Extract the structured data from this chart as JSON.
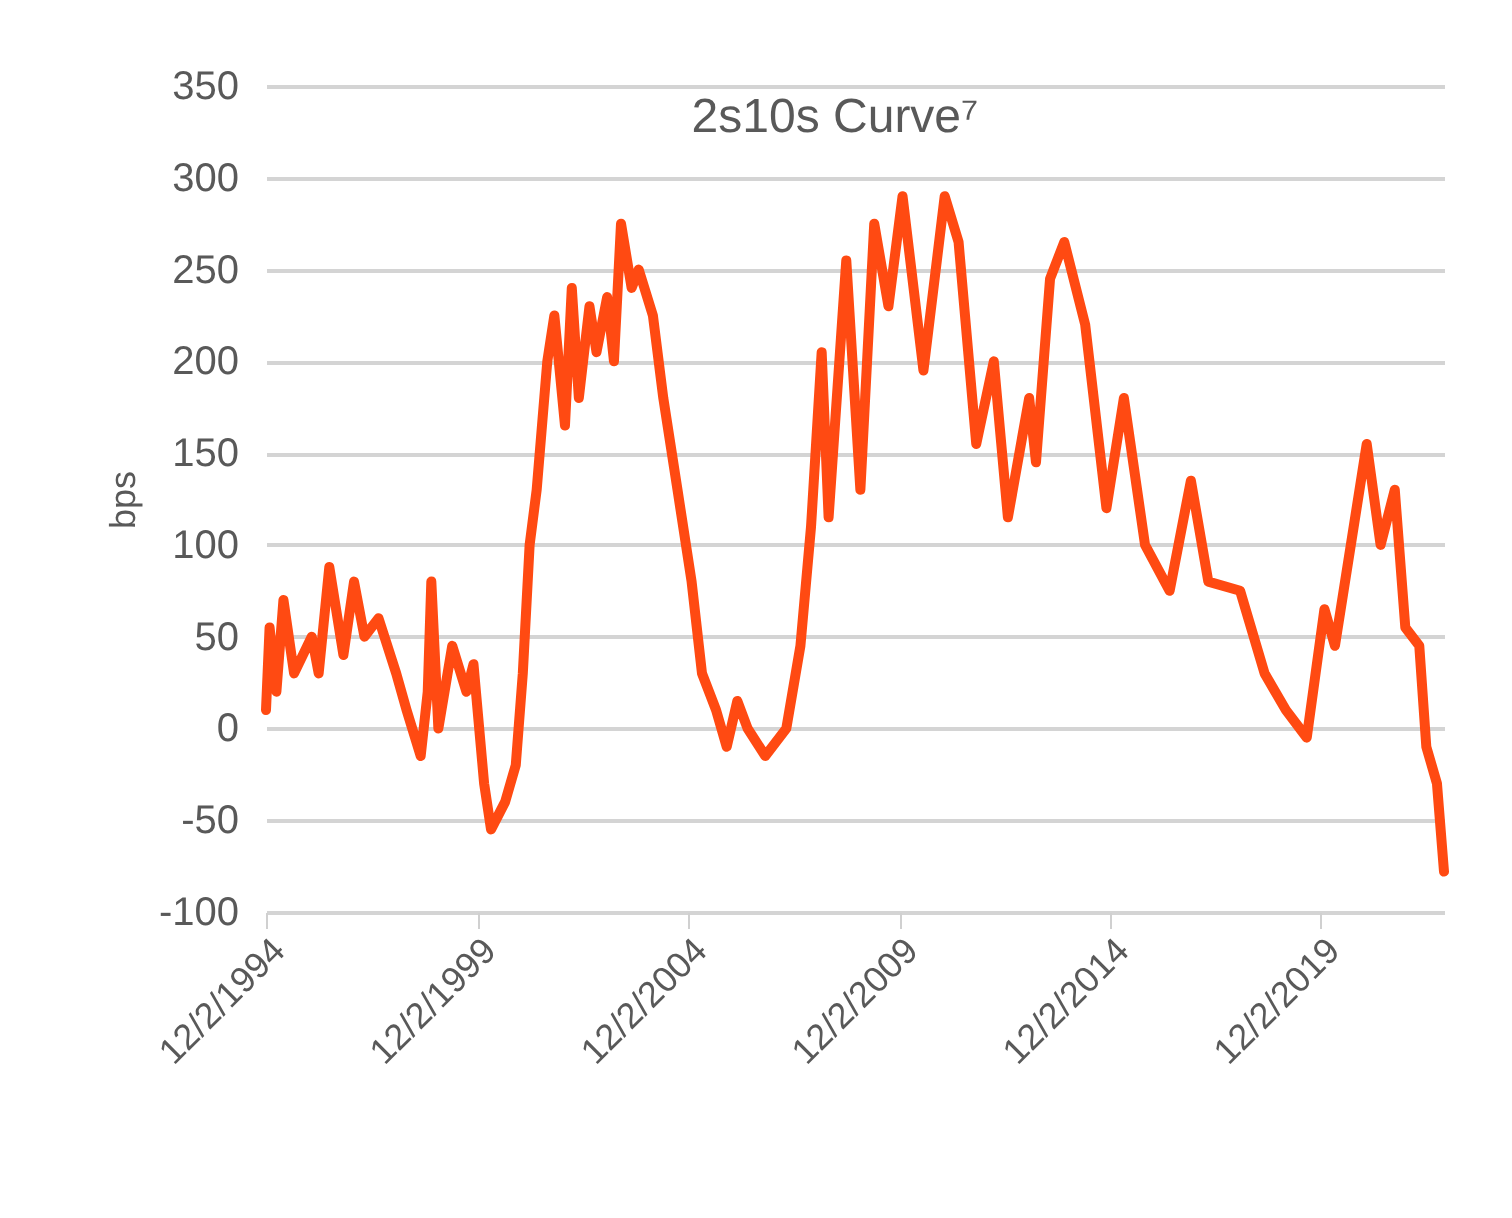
{
  "chart_data": {
    "type": "line",
    "title": "2s10s Curve⁷",
    "ylabel": "bps",
    "x": [
      "1994-12",
      "1995-01",
      "1995-03",
      "1995-05",
      "1995-08",
      "1996-01",
      "1996-03",
      "1996-06",
      "1996-10",
      "1997-01",
      "1997-04",
      "1997-08",
      "1998-01",
      "1998-04",
      "1998-08",
      "1998-10",
      "1998-11",
      "1999-01",
      "1999-05",
      "1999-09",
      "1999-11",
      "2000-02",
      "2000-04",
      "2000-08",
      "2000-11",
      "2001-01",
      "2001-03",
      "2001-05",
      "2001-08",
      "2001-10",
      "2002-01",
      "2002-03",
      "2002-05",
      "2002-08",
      "2002-10",
      "2003-01",
      "2003-03",
      "2003-05",
      "2003-08",
      "2003-10",
      "2004-02",
      "2004-05",
      "2004-09",
      "2005-01",
      "2005-04",
      "2005-08",
      "2005-11",
      "2006-02",
      "2006-05",
      "2006-10",
      "2007-04",
      "2007-08",
      "2007-11",
      "2008-02",
      "2008-04",
      "2008-09",
      "2009-01",
      "2009-05",
      "2009-09",
      "2010-01",
      "2010-07",
      "2011-01",
      "2011-05",
      "2011-10",
      "2012-03",
      "2012-07",
      "2013-01",
      "2013-03",
      "2013-07",
      "2013-11",
      "2014-05",
      "2014-11",
      "2015-04",
      "2015-10",
      "2016-05",
      "2016-11",
      "2017-04",
      "2018-01",
      "2018-08",
      "2019-02",
      "2019-08",
      "2020-01",
      "2020-04",
      "2021-01",
      "2021-05",
      "2021-09",
      "2021-12",
      "2022-04",
      "2022-06",
      "2022-09",
      "2022-11"
    ],
    "series": [
      {
        "color": "#ff4a12",
        "values": [
          10,
          55,
          20,
          70,
          30,
          50,
          30,
          88,
          40,
          80,
          50,
          60,
          30,
          10,
          -15,
          20,
          80,
          0,
          45,
          20,
          35,
          -30,
          -55,
          -40,
          -20,
          30,
          100,
          130,
          200,
          225,
          165,
          240,
          180,
          230,
          205,
          235,
          200,
          275,
          240,
          250,
          225,
          180,
          130,
          80,
          30,
          10,
          -10,
          15,
          0,
          -15,
          0,
          45,
          110,
          205,
          115,
          255,
          130,
          275,
          230,
          290,
          195,
          290,
          265,
          155,
          200,
          115,
          180,
          145,
          245,
          265,
          220,
          120,
          180,
          100,
          75,
          135,
          80,
          75,
          30,
          10,
          -5,
          65,
          45,
          155,
          100,
          130,
          55,
          45,
          -10,
          -30,
          -78
        ]
      }
    ],
    "xlim": [
      "1994-12",
      "2022-11"
    ],
    "xticks": [
      {
        "value": "1994-12-02",
        "label": "12/2/1994"
      },
      {
        "value": "1999-12-02",
        "label": "12/2/1999"
      },
      {
        "value": "2004-12-02",
        "label": "12/2/2004"
      },
      {
        "value": "2009-12-02",
        "label": "12/2/2009"
      },
      {
        "value": "2014-12-02",
        "label": "12/2/2014"
      },
      {
        "value": "2019-12-02",
        "label": "12/2/2019"
      }
    ],
    "ylim": [
      -100,
      350
    ],
    "yticks": [
      -100,
      -50,
      0,
      50,
      100,
      150,
      200,
      250,
      300,
      350
    ],
    "grid": "y",
    "legend": false,
    "marker": "none",
    "line_style": "solid"
  }
}
